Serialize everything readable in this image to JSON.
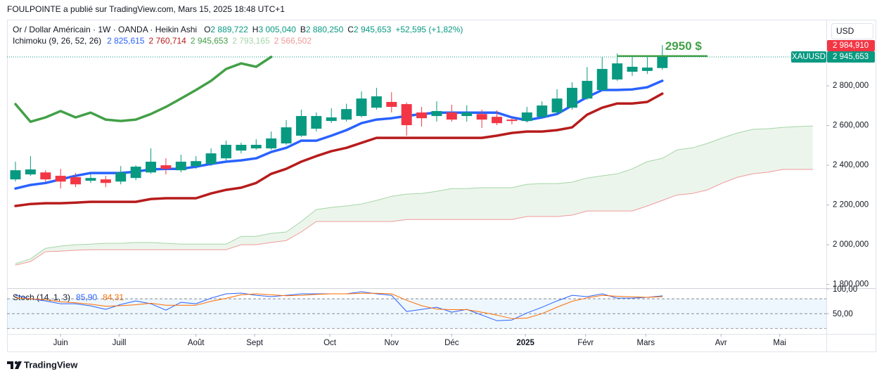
{
  "header": "FOULPOINTE a publié sur TradingView.com, Mars 15, 2025 18:48 UTC+1",
  "footer": "TradingView",
  "chart_data": {
    "type": "candlestick",
    "legend": {
      "symbol": "Or / Dollar Américain · 1W · OANDA · Heikin Ashi",
      "ohlc": [
        {
          "key": "O",
          "value": "2 889,722"
        },
        {
          "key": "H",
          "value": "3 005,040"
        },
        {
          "key": "B",
          "value": "2 880,250"
        },
        {
          "key": "C",
          "value": "2 945,653"
        }
      ],
      "change": "+52,595 (+1,82%)",
      "color": "#089981"
    },
    "currency": "USD",
    "x": [
      0,
      1,
      2,
      3,
      4,
      5,
      6,
      7,
      8,
      9,
      10,
      11,
      12,
      13,
      14,
      15,
      16,
      17,
      18,
      19,
      20,
      21,
      22,
      23,
      24,
      25,
      26,
      27,
      28,
      29,
      30,
      31,
      32,
      33,
      34,
      35,
      36,
      37,
      38,
      39,
      40,
      41,
      42,
      43,
      44,
      45,
      46,
      47,
      48,
      49,
      50,
      51,
      52,
      53
    ],
    "xlim": [
      -0.56,
      53.9
    ],
    "xticks": [
      {
        "value": 3.0,
        "label": "Juin"
      },
      {
        "value": 6.9,
        "label": "Juill"
      },
      {
        "value": 12.0,
        "label": "Août"
      },
      {
        "value": 15.9,
        "label": "Sept"
      },
      {
        "value": 20.9,
        "label": "Oct"
      },
      {
        "value": 25.0,
        "label": "Nov"
      },
      {
        "value": 29.0,
        "label": "Déc"
      },
      {
        "value": 33.9,
        "label": "2025"
      },
      {
        "value": 37.9,
        "label": "Févr"
      },
      {
        "value": 41.9,
        "label": "Mars"
      },
      {
        "value": 46.9,
        "label": "Avr"
      },
      {
        "value": 50.8,
        "label": "Mai"
      }
    ],
    "ylim": [
      1781,
      3126
    ],
    "yticks": [
      {
        "value": 1800,
        "label": "1 800,000"
      },
      {
        "value": 2000,
        "label": "2 000,000"
      },
      {
        "value": 2200,
        "label": "2 200,000"
      },
      {
        "value": 2400,
        "label": "2 400,000"
      },
      {
        "value": 2600,
        "label": "2 600,000"
      },
      {
        "value": 2800,
        "label": "2 800,000"
      }
    ],
    "grid": false,
    "candles": {
      "up_color": "#089981",
      "down_color": "#f23645",
      "open": [
        2329,
        2354,
        2364,
        2347,
        2340,
        2322,
        2329,
        2318,
        2336,
        2364,
        2400,
        2375,
        2396,
        2407,
        2435,
        2474,
        2485,
        2485,
        2510,
        2549,
        2584,
        2623,
        2630,
        2648,
        2690,
        2719,
        2708,
        2666,
        2648,
        2666,
        2648,
        2658,
        2644,
        2630,
        2623,
        2644,
        2666,
        2690,
        2736,
        2779,
        2832,
        2871,
        2875,
        2889.722,
        null,
        null,
        null,
        null,
        null,
        null,
        null,
        null,
        null,
        null
      ],
      "high": [
        2418,
        2446,
        2375,
        2382,
        2361,
        2357,
        2347,
        2396,
        2400,
        2485,
        2435,
        2453,
        2446,
        2485,
        2524,
        2514,
        2531,
        2570,
        2627,
        2680,
        2666,
        2687,
        2710,
        2772,
        2790,
        2768,
        2716,
        2694,
        2722,
        2705,
        2702,
        2680,
        2676,
        2640,
        2694,
        2722,
        2783,
        2818,
        2895,
        2945,
        2963,
        2952,
        2945,
        3005.04,
        null,
        null,
        null,
        null,
        null,
        null,
        null,
        null,
        null,
        null
      ],
      "low": [
        2318,
        2347,
        2315,
        2283,
        2290,
        2311,
        2290,
        2304,
        2325,
        2357,
        2354,
        2364,
        2382,
        2396,
        2425,
        2460,
        2478,
        2478,
        2503,
        2542,
        2570,
        2613,
        2620,
        2641,
        2680,
        2666,
        2549,
        2595,
        2620,
        2620,
        2620,
        2588,
        2602,
        2606,
        2616,
        2637,
        2655,
        2680,
        2729,
        2772,
        2825,
        2850,
        2860,
        2880.25,
        null,
        null,
        null,
        null,
        null,
        null,
        null,
        null,
        null,
        null
      ],
      "close": [
        2375,
        2379,
        2329,
        2318,
        2304,
        2336,
        2311,
        2364,
        2393,
        2418,
        2382,
        2418,
        2421,
        2460,
        2503,
        2503,
        2503,
        2535,
        2591,
        2648,
        2648,
        2641,
        2683,
        2736,
        2747,
        2694,
        2602,
        2637,
        2673,
        2630,
        2666,
        2630,
        2612,
        2623,
        2666,
        2701,
        2736,
        2790,
        2825,
        2885,
        2913,
        2896,
        2892,
        2945.653,
        null,
        null,
        null,
        null,
        null,
        null,
        null,
        null,
        null,
        null
      ]
    },
    "ichimoku": {
      "label": "Ichimoku (9, 26, 52, 26)",
      "value_labels": [
        "2 825,615",
        "2 760,714",
        "2 945,653",
        "2 793,165",
        "2 566,502"
      ],
      "cloud_color": "rgba(67,160,71,0.10)",
      "lines": [
        {
          "color": "#2962ff",
          "width": 3.5,
          "values": [
            2283,
            2301,
            2311,
            2329,
            2347,
            2361,
            2361,
            2361,
            2368,
            2379,
            2382,
            2382,
            2393,
            2407,
            2418,
            2425,
            2435,
            2467,
            2488,
            2524,
            2524,
            2549,
            2577,
            2612,
            2630,
            2637,
            2648,
            2658,
            2665,
            2665,
            2665,
            2665,
            2665,
            2641,
            2627,
            2641,
            2658,
            2701,
            2743,
            2779,
            2779,
            2782,
            2793,
            2825.615,
            null,
            null,
            null,
            null,
            null,
            null,
            null,
            null,
            null,
            null
          ]
        },
        {
          "color": "#b71c1c",
          "width": 3.5,
          "values": [
            2195,
            2205,
            2209,
            2209,
            2212,
            2216,
            2216,
            2216,
            2216,
            2230,
            2234,
            2234,
            2234,
            2258,
            2276,
            2287,
            2311,
            2357,
            2382,
            2418,
            2446,
            2471,
            2488,
            2513,
            2538,
            2538,
            2538,
            2538,
            2538,
            2538,
            2538,
            2538,
            2549,
            2563,
            2570,
            2570,
            2577,
            2591,
            2655,
            2690,
            2711,
            2711,
            2719,
            2760.714,
            null,
            null,
            null,
            null,
            null,
            null,
            null,
            null,
            null,
            null
          ]
        },
        {
          "color": "#43a047",
          "width": 3.5,
          "values": [
            2708,
            2619,
            2641,
            2673,
            2641,
            2665,
            2630,
            2623,
            2630,
            2658,
            2694,
            2736,
            2779,
            2825,
            2885,
            2913,
            2896,
            2945.653,
            null,
            null,
            null,
            null,
            null,
            null,
            null,
            null,
            null,
            null,
            null,
            null,
            null,
            null,
            null,
            null,
            null,
            null,
            null,
            null,
            null,
            null,
            null,
            null,
            null,
            null,
            null,
            null,
            null,
            null,
            null,
            null,
            null,
            null,
            null,
            null
          ]
        },
        {
          "color": "#a5d6a7",
          "width": 1,
          "values": [
            1904,
            1929,
            1982,
            1993,
            2000,
            2003,
            2007,
            2007,
            2011,
            2011,
            2007,
            2003,
            2003,
            2003,
            2003,
            2042,
            2042,
            2057,
            2064,
            2117,
            2177,
            2188,
            2195,
            2205,
            2223,
            2244,
            2255,
            2258,
            2269,
            2283,
            2283,
            2287,
            2287,
            2287,
            2304,
            2308,
            2308,
            2315,
            2336,
            2347,
            2357,
            2382,
            2418,
            2435,
            2478,
            2488,
            2510,
            2538,
            2563,
            2581,
            2584,
            2591,
            2595,
            2598
          ]
        },
        {
          "color": "#ef9a9a",
          "width": 1,
          "values": [
            1897,
            1915,
            1965,
            1968,
            1972,
            1975,
            1975,
            1975,
            1975,
            1975,
            1975,
            1975,
            1975,
            1975,
            1975,
            2000,
            2000,
            2011,
            2021,
            2064,
            2117,
            2117,
            2117,
            2117,
            2117,
            2117,
            2127,
            2127,
            2127,
            2127,
            2127,
            2127,
            2127,
            2127,
            2142,
            2142,
            2142,
            2149,
            2170,
            2170,
            2170,
            2170,
            2195,
            2223,
            2251,
            2258,
            2276,
            2311,
            2340,
            2357,
            2365,
            2379,
            2379,
            2379
          ]
        }
      ]
    },
    "price_badges": [
      {
        "value": 2984.91,
        "label": "2 984,910",
        "color": "#f23645"
      },
      {
        "value": 2945.653,
        "label": "2 945,653",
        "color": "#089981",
        "symbol": "XAUUSD"
      }
    ],
    "annotation": {
      "text": "2950 $",
      "value": 2950,
      "x": [
        40,
        46
      ],
      "color": "#43a047"
    },
    "stoch": {
      "label": "Stoch (14, 1, 3)",
      "value_labels": [
        "85,90",
        "84,31"
      ],
      "ylim": [
        9,
        100
      ],
      "yticks": [
        {
          "value": 100,
          "label": "100,00"
        },
        {
          "value": 50,
          "label": "50,00"
        }
      ],
      "bands": [
        20,
        80
      ],
      "midline": 50,
      "band_color": "rgba(33,150,243,0.08)",
      "lines": [
        {
          "color": "#2962ff",
          "values": [
            87.1,
            80,
            75.7,
            70,
            70,
            65.7,
            58.6,
            68.6,
            75.7,
            70,
            57.1,
            72.9,
            70,
            81.4,
            90,
            91.4,
            87.1,
            84.3,
            87.1,
            90,
            90,
            90,
            90,
            94.3,
            90,
            87.1,
            54.3,
            58.6,
            62.9,
            52.9,
            58.6,
            47.1,
            35.7,
            37.1,
            51.4,
            62.9,
            75.7,
            87.1,
            84.3,
            90,
            81.4,
            81.4,
            82.9,
            85.9,
            null,
            null,
            null,
            null,
            null,
            null,
            null,
            null,
            null,
            null
          ]
        },
        {
          "color": "#ff6d00",
          "values": [
            82,
            80,
            78,
            74,
            72,
            69,
            65,
            66,
            68,
            71,
            67,
            67,
            67,
            75,
            81,
            88,
            90,
            88,
            86,
            87,
            89,
            90,
            90,
            91,
            91,
            90,
            77,
            66,
            59,
            58,
            58,
            53,
            47,
            40,
            41,
            50,
            63,
            75,
            82,
            87,
            85,
            84,
            83,
            84.31,
            null,
            null,
            null,
            null,
            null,
            null,
            null,
            null,
            null,
            null
          ]
        }
      ]
    }
  }
}
